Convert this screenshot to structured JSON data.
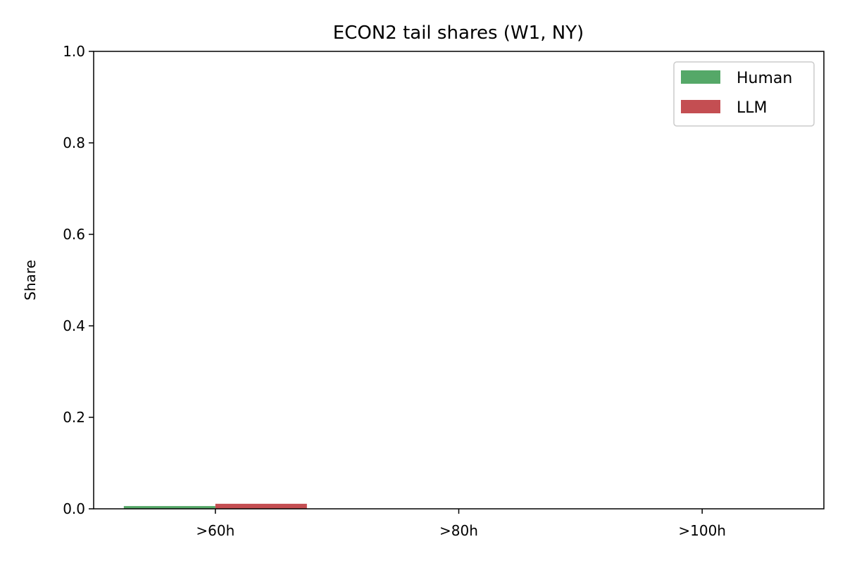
{
  "chart_data": {
    "type": "bar",
    "title": "ECON2 tail shares (W1, NY)",
    "xlabel": "",
    "ylabel": "Share",
    "categories": [
      ">60h",
      ">80h",
      ">100h"
    ],
    "series": [
      {
        "name": "Human",
        "color": "#55a868",
        "values": [
          0.006,
          0.0,
          0.0
        ]
      },
      {
        "name": "LLM",
        "color": "#c44e52",
        "values": [
          0.011,
          0.0,
          0.0
        ]
      }
    ],
    "ylim": [
      0,
      1.0
    ],
    "yticks": [
      "0.0",
      "0.2",
      "0.4",
      "0.6",
      "0.8",
      "1.0"
    ],
    "grid": false,
    "legend_position": "top-right"
  }
}
